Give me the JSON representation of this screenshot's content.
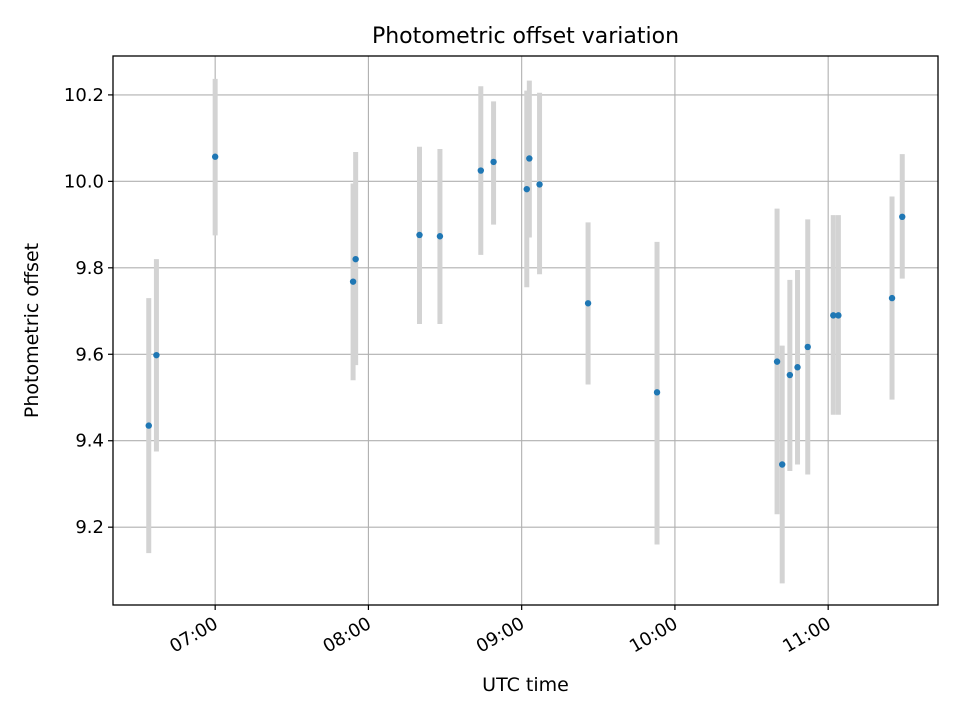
{
  "chart_data": {
    "type": "scatter",
    "title": "Photometric offset variation",
    "xlabel": "UTC time",
    "ylabel": "Photometric offset",
    "x_axis_type": "time",
    "xlim": [
      "06:20",
      "11:43"
    ],
    "ylim": [
      9.02,
      10.29
    ],
    "x_ticks": [
      "07:00",
      "08:00",
      "09:00",
      "10:00",
      "11:00"
    ],
    "y_ticks": [
      9.2,
      9.4,
      9.6,
      9.8,
      10.0,
      10.2
    ],
    "y_tick_labels": [
      "9.2",
      "9.4",
      "9.6",
      "9.8",
      "10.0",
      "10.2"
    ],
    "grid": true,
    "colors": {
      "points": "#1f77b4",
      "error_bars": "#d3d3d3",
      "grid": "#b0b0b0"
    },
    "points": [
      {
        "x": "06:34",
        "y": 9.435,
        "ylo": 9.14,
        "yhi": 9.73
      },
      {
        "x": "06:37",
        "y": 9.598,
        "ylo": 9.375,
        "yhi": 9.82
      },
      {
        "x": "07:00",
        "y": 10.057,
        "ylo": 9.875,
        "yhi": 10.237
      },
      {
        "x": "07:54",
        "y": 9.768,
        "ylo": 9.54,
        "yhi": 9.995
      },
      {
        "x": "07:55",
        "y": 9.82,
        "ylo": 9.575,
        "yhi": 10.068
      },
      {
        "x": "08:20",
        "y": 9.876,
        "ylo": 9.67,
        "yhi": 10.08
      },
      {
        "x": "08:28",
        "y": 9.873,
        "ylo": 9.67,
        "yhi": 10.075
      },
      {
        "x": "08:44",
        "y": 10.025,
        "ylo": 9.83,
        "yhi": 10.22
      },
      {
        "x": "08:49",
        "y": 10.045,
        "ylo": 9.9,
        "yhi": 10.185
      },
      {
        "x": "09:02",
        "y": 9.982,
        "ylo": 9.755,
        "yhi": 10.21
      },
      {
        "x": "09:03",
        "y": 10.053,
        "ylo": 9.87,
        "yhi": 10.233
      },
      {
        "x": "09:07",
        "y": 9.993,
        "ylo": 9.785,
        "yhi": 10.205
      },
      {
        "x": "09:26",
        "y": 9.718,
        "ylo": 9.53,
        "yhi": 9.905
      },
      {
        "x": "09:53",
        "y": 9.512,
        "ylo": 9.16,
        "yhi": 9.86
      },
      {
        "x": "10:40",
        "y": 9.583,
        "ylo": 9.23,
        "yhi": 9.937
      },
      {
        "x": "10:42",
        "y": 9.345,
        "ylo": 9.07,
        "yhi": 9.62
      },
      {
        "x": "10:45",
        "y": 9.552,
        "ylo": 9.33,
        "yhi": 9.772
      },
      {
        "x": "10:48",
        "y": 9.57,
        "ylo": 9.345,
        "yhi": 9.795
      },
      {
        "x": "10:52",
        "y": 9.617,
        "ylo": 9.322,
        "yhi": 9.912
      },
      {
        "x": "11:02",
        "y": 9.69,
        "ylo": 9.46,
        "yhi": 9.922
      },
      {
        "x": "11:04",
        "y": 9.69,
        "ylo": 9.46,
        "yhi": 9.922
      },
      {
        "x": "11:25",
        "y": 9.73,
        "ylo": 9.495,
        "yhi": 9.965
      },
      {
        "x": "11:29",
        "y": 9.918,
        "ylo": 9.775,
        "yhi": 10.063
      }
    ]
  }
}
